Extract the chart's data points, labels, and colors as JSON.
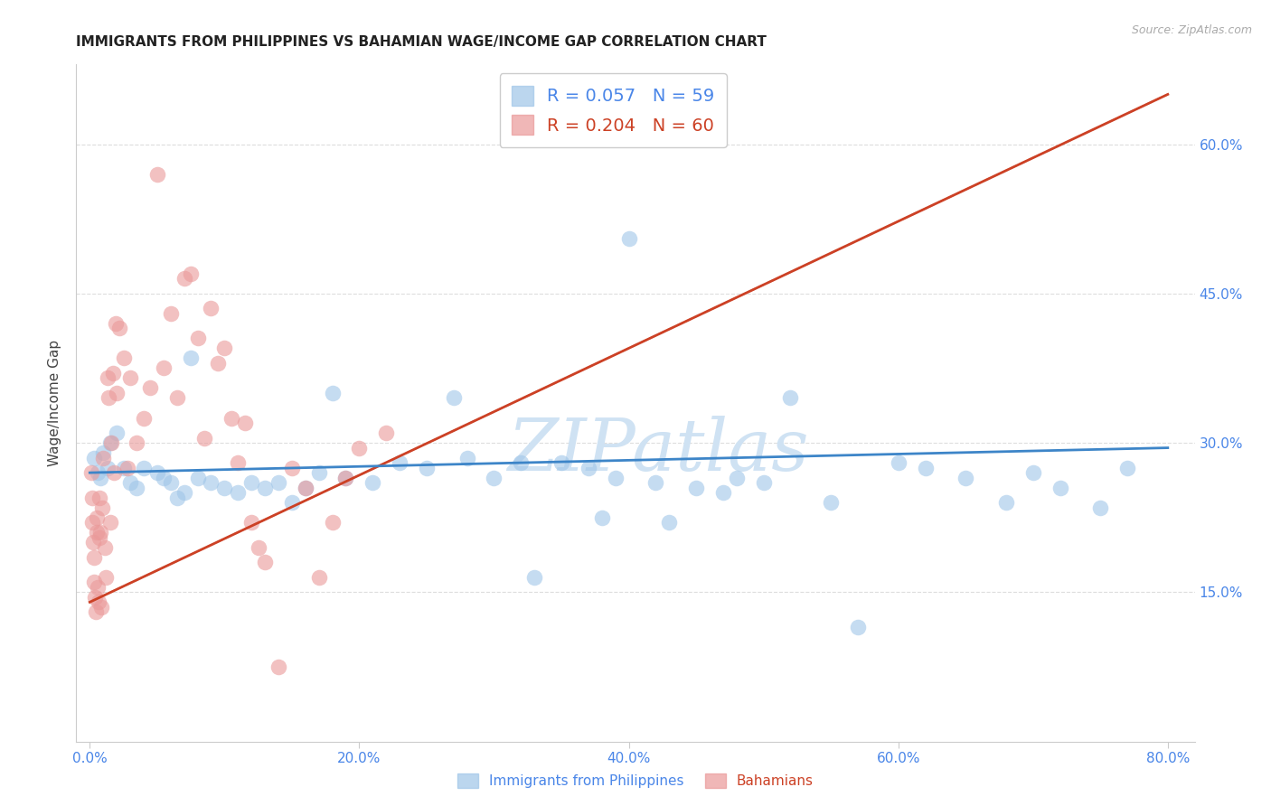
{
  "title": "IMMIGRANTS FROM PHILIPPINES VS BAHAMIAN WAGE/INCOME GAP CORRELATION CHART",
  "source": "Source: ZipAtlas.com",
  "ylabel": "Wage/Income Gap",
  "x_tick_labels": [
    "0.0%",
    "20.0%",
    "40.0%",
    "60.0%",
    "80.0%"
  ],
  "x_tick_positions": [
    0.0,
    20.0,
    40.0,
    60.0,
    80.0
  ],
  "y_tick_labels": [
    "15.0%",
    "30.0%",
    "45.0%",
    "60.0%"
  ],
  "y_tick_positions": [
    15.0,
    30.0,
    45.0,
    60.0
  ],
  "xlim": [
    -1.0,
    82.0
  ],
  "ylim": [
    0.0,
    68.0
  ],
  "legend1_label": "Immigrants from Philippines",
  "legend2_label": "Bahamians",
  "R1": "0.057",
  "N1": "59",
  "R2": "0.204",
  "N2": "60",
  "color_blue": "#9fc5e8",
  "color_pink": "#ea9999",
  "color_blue_line": "#3d85c8",
  "color_pink_line": "#cc4125",
  "color_pink_dash": "#e06666",
  "watermark_color": "#cfe2f3",
  "axis_label_color": "#4a86e8",
  "scatter_blue_x": [
    0.3,
    0.6,
    0.8,
    1.0,
    1.3,
    1.5,
    2.0,
    2.5,
    3.0,
    3.5,
    4.0,
    5.0,
    5.5,
    6.0,
    6.5,
    7.0,
    7.5,
    8.0,
    9.0,
    10.0,
    11.0,
    12.0,
    13.0,
    14.0,
    15.0,
    16.0,
    17.0,
    18.0,
    19.0,
    21.0,
    23.0,
    25.0,
    27.0,
    28.0,
    30.0,
    32.0,
    33.0,
    35.0,
    37.0,
    38.0,
    39.0,
    40.0,
    42.0,
    43.0,
    45.0,
    47.0,
    48.0,
    50.0,
    52.0,
    55.0,
    57.0,
    60.0,
    62.0,
    65.0,
    68.0,
    70.0,
    72.0,
    75.0,
    77.0
  ],
  "scatter_blue_y": [
    28.5,
    27.0,
    26.5,
    29.0,
    27.5,
    30.0,
    31.0,
    27.5,
    26.0,
    25.5,
    27.5,
    27.0,
    26.5,
    26.0,
    24.5,
    25.0,
    38.5,
    26.5,
    26.0,
    25.5,
    25.0,
    26.0,
    25.5,
    26.0,
    24.0,
    25.5,
    27.0,
    35.0,
    26.5,
    26.0,
    28.0,
    27.5,
    34.5,
    28.5,
    26.5,
    28.0,
    16.5,
    28.0,
    27.5,
    22.5,
    26.5,
    50.5,
    26.0,
    22.0,
    25.5,
    25.0,
    26.5,
    26.0,
    34.5,
    24.0,
    11.5,
    28.0,
    27.5,
    26.5,
    24.0,
    27.0,
    25.5,
    23.5,
    27.5
  ],
  "scatter_pink_x": [
    0.1,
    0.15,
    0.2,
    0.25,
    0.3,
    0.35,
    0.4,
    0.45,
    0.5,
    0.55,
    0.6,
    0.65,
    0.7,
    0.75,
    0.8,
    0.85,
    0.9,
    1.0,
    1.1,
    1.2,
    1.3,
    1.4,
    1.5,
    1.6,
    1.7,
    1.8,
    1.9,
    2.0,
    2.2,
    2.5,
    2.8,
    3.0,
    3.5,
    4.0,
    4.5,
    5.0,
    5.5,
    6.0,
    6.5,
    7.0,
    7.5,
    8.0,
    8.5,
    9.0,
    9.5,
    10.0,
    10.5,
    11.0,
    11.5,
    12.0,
    12.5,
    13.0,
    14.0,
    15.0,
    16.0,
    17.0,
    18.0,
    19.0,
    20.0,
    22.0
  ],
  "scatter_pink_y": [
    27.0,
    24.5,
    22.0,
    20.0,
    18.5,
    16.0,
    14.5,
    13.0,
    22.5,
    21.0,
    15.5,
    14.0,
    24.5,
    20.5,
    21.0,
    13.5,
    23.5,
    28.5,
    19.5,
    16.5,
    36.5,
    34.5,
    22.0,
    30.0,
    37.0,
    27.0,
    42.0,
    35.0,
    41.5,
    38.5,
    27.5,
    36.5,
    30.0,
    32.5,
    35.5,
    57.0,
    37.5,
    43.0,
    34.5,
    46.5,
    47.0,
    40.5,
    30.5,
    43.5,
    38.0,
    39.5,
    32.5,
    28.0,
    32.0,
    22.0,
    19.5,
    18.0,
    7.5,
    27.5,
    25.5,
    16.5,
    22.0,
    26.5,
    29.5,
    31.0
  ],
  "blue_trend_x": [
    0.0,
    80.0
  ],
  "blue_trend_y": [
    27.0,
    29.5
  ],
  "pink_trend_x": [
    0.0,
    80.0
  ],
  "pink_trend_y": [
    14.0,
    65.0
  ]
}
